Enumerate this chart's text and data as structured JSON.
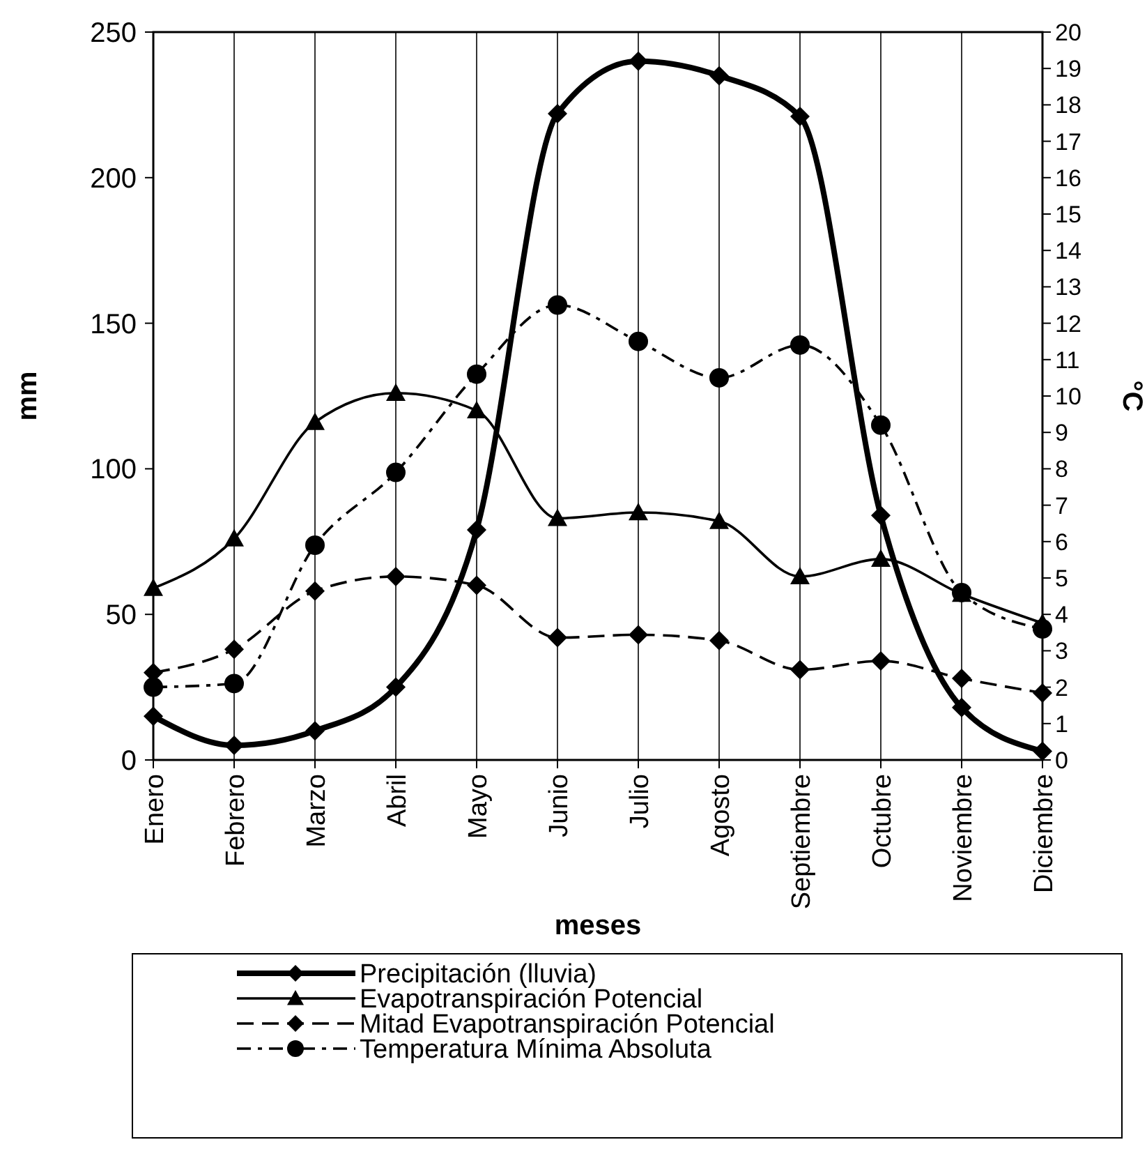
{
  "chart_data": {
    "type": "line",
    "xlabel": "meses",
    "ylabel": "mm",
    "y2label": "°C",
    "categories": [
      "Enero",
      "Febrero",
      "Marzo",
      "Abril",
      "Mayo",
      "Junio",
      "Julio",
      "Agosto",
      "Septiembre",
      "Octubre",
      "Noviembre",
      "Diciembre"
    ],
    "series": [
      {
        "name": "Precipitación (lluvia)",
        "color": "#000000",
        "marker": "diamond",
        "line_style": "solid",
        "values": [
          15,
          5,
          10,
          25,
          79,
          222,
          240,
          235,
          221,
          84,
          18,
          3
        ]
      },
      {
        "name": "Evapotranspiración Potencial",
        "color": "#000000",
        "marker": "triangle",
        "line_style": "solid",
        "values": [
          59,
          76,
          116,
          126,
          120,
          83,
          85,
          82,
          63,
          69,
          57,
          47
        ]
      },
      {
        "name": "Mitad Evapotranspiración Potencial",
        "color": "#000000",
        "marker": "diamond",
        "line_style": "dashed",
        "values": [
          30,
          38,
          58,
          63,
          60,
          42,
          43,
          41,
          31,
          34,
          28,
          23
        ]
      },
      {
        "name": "Temperatura Mínima Absoluta",
        "color": "#000000",
        "marker": "circle",
        "line_style": "dotted",
        "axis": "y2",
        "values": [
          2.0,
          2.1,
          5.9,
          7.9,
          10.6,
          12.5,
          11.5,
          10.5,
          11.4,
          9.2,
          4.6,
          3.6
        ]
      }
    ],
    "ylim": [
      0,
      250
    ],
    "yticks": [
      0,
      50,
      100,
      150,
      200,
      250
    ],
    "y2lim": [
      0,
      20
    ],
    "y2ticks": [
      0,
      1,
      2,
      3,
      4,
      5,
      6,
      7,
      8,
      9,
      10,
      11,
      12,
      13,
      14,
      15,
      16,
      17,
      18,
      19,
      20
    ],
    "grid": "x",
    "legend": "bottom"
  }
}
